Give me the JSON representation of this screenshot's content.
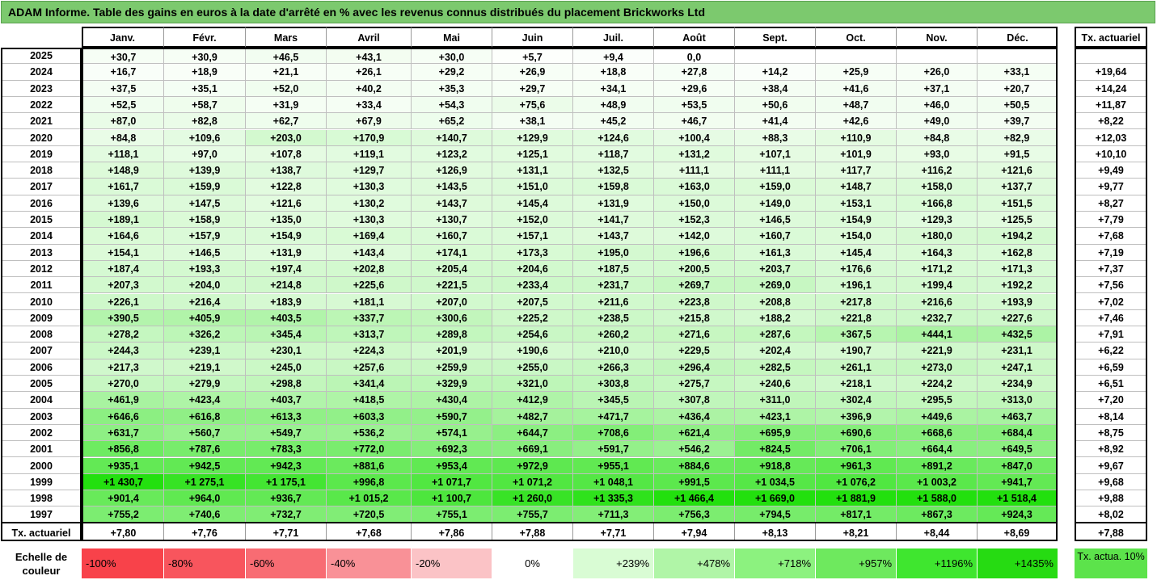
{
  "title": "ADAM Informe. Table des gains en euros à la date d'arrêté en % avec les revenus connus distribués du placement Brickworks Ltd",
  "months": [
    "Janv.",
    "Févr.",
    "Mars",
    "Avril",
    "Mai",
    "Juin",
    "Juil.",
    "Août",
    "Sept.",
    "Oct.",
    "Nov.",
    "Déc."
  ],
  "rate_header": "Tx. actuariel",
  "rows": [
    {
      "year": "2025",
      "values": [
        "+30,7",
        "+30,9",
        "+46,5",
        "+43,1",
        "+30,0",
        "+5,7",
        "+9,4",
        "0,0",
        "",
        "",
        "",
        ""
      ],
      "rate": ""
    },
    {
      "year": "2024",
      "values": [
        "+16,7",
        "+18,9",
        "+21,1",
        "+26,1",
        "+29,2",
        "+26,9",
        "+18,8",
        "+27,8",
        "+14,2",
        "+25,9",
        "+26,0",
        "+33,1"
      ],
      "rate": "+19,64"
    },
    {
      "year": "2023",
      "values": [
        "+37,5",
        "+35,1",
        "+52,0",
        "+40,2",
        "+35,3",
        "+29,7",
        "+34,1",
        "+29,6",
        "+38,4",
        "+41,6",
        "+37,1",
        "+20,7"
      ],
      "rate": "+14,24"
    },
    {
      "year": "2022",
      "values": [
        "+52,5",
        "+58,7",
        "+31,9",
        "+33,4",
        "+54,3",
        "+75,6",
        "+48,9",
        "+53,5",
        "+50,6",
        "+48,7",
        "+46,0",
        "+50,5"
      ],
      "rate": "+11,87"
    },
    {
      "year": "2021",
      "values": [
        "+87,0",
        "+82,8",
        "+62,7",
        "+67,9",
        "+65,2",
        "+38,1",
        "+45,2",
        "+46,7",
        "+41,4",
        "+42,6",
        "+49,0",
        "+39,7"
      ],
      "rate": "+8,22"
    },
    {
      "year": "2020",
      "values": [
        "+84,8",
        "+109,6",
        "+203,0",
        "+170,9",
        "+140,7",
        "+129,9",
        "+124,6",
        "+100,4",
        "+88,3",
        "+110,9",
        "+84,8",
        "+82,9"
      ],
      "rate": "+12,03"
    },
    {
      "year": "2019",
      "values": [
        "+118,1",
        "+97,0",
        "+107,8",
        "+119,1",
        "+123,2",
        "+125,1",
        "+118,7",
        "+131,2",
        "+107,1",
        "+101,9",
        "+93,0",
        "+91,5"
      ],
      "rate": "+10,10"
    },
    {
      "year": "2018",
      "values": [
        "+148,9",
        "+139,9",
        "+138,7",
        "+129,7",
        "+126,9",
        "+131,1",
        "+132,5",
        "+111,1",
        "+111,1",
        "+117,7",
        "+116,2",
        "+121,6"
      ],
      "rate": "+9,49"
    },
    {
      "year": "2017",
      "values": [
        "+161,7",
        "+159,9",
        "+122,8",
        "+130,3",
        "+143,5",
        "+151,0",
        "+159,8",
        "+163,0",
        "+159,0",
        "+148,7",
        "+158,0",
        "+137,7"
      ],
      "rate": "+9,77"
    },
    {
      "year": "2016",
      "values": [
        "+139,6",
        "+147,5",
        "+121,6",
        "+130,2",
        "+143,7",
        "+145,4",
        "+131,9",
        "+150,0",
        "+149,0",
        "+153,1",
        "+166,8",
        "+151,5"
      ],
      "rate": "+8,27"
    },
    {
      "year": "2015",
      "values": [
        "+189,1",
        "+158,9",
        "+135,0",
        "+130,3",
        "+130,7",
        "+152,0",
        "+141,7",
        "+152,3",
        "+146,5",
        "+154,9",
        "+129,3",
        "+125,5"
      ],
      "rate": "+7,79"
    },
    {
      "year": "2014",
      "values": [
        "+164,6",
        "+157,9",
        "+154,9",
        "+169,4",
        "+160,7",
        "+157,1",
        "+143,7",
        "+142,0",
        "+160,7",
        "+154,0",
        "+180,0",
        "+194,2"
      ],
      "rate": "+7,68"
    },
    {
      "year": "2013",
      "values": [
        "+154,1",
        "+146,5",
        "+131,9",
        "+143,4",
        "+174,1",
        "+173,3",
        "+195,0",
        "+196,6",
        "+161,3",
        "+145,4",
        "+164,3",
        "+162,8"
      ],
      "rate": "+7,19"
    },
    {
      "year": "2012",
      "values": [
        "+187,4",
        "+193,3",
        "+197,4",
        "+202,8",
        "+205,4",
        "+204,6",
        "+187,5",
        "+200,5",
        "+203,7",
        "+176,6",
        "+171,2",
        "+171,3"
      ],
      "rate": "+7,37"
    },
    {
      "year": "2011",
      "values": [
        "+207,3",
        "+204,0",
        "+214,8",
        "+225,6",
        "+221,5",
        "+233,4",
        "+231,7",
        "+269,7",
        "+269,0",
        "+196,1",
        "+199,4",
        "+192,2"
      ],
      "rate": "+7,56"
    },
    {
      "year": "2010",
      "values": [
        "+226,1",
        "+216,4",
        "+183,9",
        "+181,1",
        "+207,0",
        "+207,5",
        "+211,6",
        "+223,8",
        "+208,8",
        "+217,8",
        "+216,6",
        "+193,9"
      ],
      "rate": "+7,02"
    },
    {
      "year": "2009",
      "values": [
        "+390,5",
        "+405,9",
        "+403,5",
        "+337,7",
        "+300,6",
        "+225,2",
        "+238,5",
        "+215,8",
        "+188,2",
        "+221,8",
        "+232,7",
        "+227,6"
      ],
      "rate": "+7,46"
    },
    {
      "year": "2008",
      "values": [
        "+278,2",
        "+326,2",
        "+345,4",
        "+313,7",
        "+289,8",
        "+254,6",
        "+260,2",
        "+271,6",
        "+287,6",
        "+367,5",
        "+444,1",
        "+432,5"
      ],
      "rate": "+7,91"
    },
    {
      "year": "2007",
      "values": [
        "+244,3",
        "+239,1",
        "+230,1",
        "+224,3",
        "+201,9",
        "+190,6",
        "+210,0",
        "+229,5",
        "+202,4",
        "+190,7",
        "+221,9",
        "+231,1"
      ],
      "rate": "+6,22"
    },
    {
      "year": "2006",
      "values": [
        "+217,3",
        "+219,1",
        "+245,0",
        "+257,6",
        "+259,9",
        "+255,0",
        "+266,3",
        "+296,4",
        "+282,5",
        "+261,1",
        "+273,0",
        "+247,1"
      ],
      "rate": "+6,59"
    },
    {
      "year": "2005",
      "values": [
        "+270,0",
        "+279,9",
        "+298,8",
        "+341,4",
        "+329,9",
        "+321,0",
        "+303,8",
        "+275,7",
        "+240,6",
        "+218,1",
        "+224,2",
        "+234,9"
      ],
      "rate": "+6,51"
    },
    {
      "year": "2004",
      "values": [
        "+461,9",
        "+423,4",
        "+403,7",
        "+418,5",
        "+430,4",
        "+412,9",
        "+345,5",
        "+307,8",
        "+311,0",
        "+302,4",
        "+295,5",
        "+313,0"
      ],
      "rate": "+7,20"
    },
    {
      "year": "2003",
      "values": [
        "+646,6",
        "+616,8",
        "+613,3",
        "+603,3",
        "+590,7",
        "+482,7",
        "+471,7",
        "+436,4",
        "+423,1",
        "+396,9",
        "+449,6",
        "+463,7"
      ],
      "rate": "+8,14"
    },
    {
      "year": "2002",
      "values": [
        "+631,7",
        "+560,7",
        "+549,7",
        "+536,2",
        "+574,1",
        "+644,7",
        "+708,6",
        "+621,4",
        "+695,9",
        "+690,6",
        "+668,6",
        "+684,4"
      ],
      "rate": "+8,75"
    },
    {
      "year": "2001",
      "values": [
        "+856,8",
        "+787,6",
        "+783,3",
        "+772,0",
        "+692,3",
        "+669,1",
        "+591,7",
        "+546,2",
        "+824,5",
        "+706,1",
        "+664,4",
        "+649,5"
      ],
      "rate": "+8,92"
    },
    {
      "year": "2000",
      "values": [
        "+935,1",
        "+942,5",
        "+942,3",
        "+881,6",
        "+953,4",
        "+972,9",
        "+955,1",
        "+884,6",
        "+918,8",
        "+961,3",
        "+891,2",
        "+847,0"
      ],
      "rate": "+9,67"
    },
    {
      "year": "1999",
      "values": [
        "+1 430,7",
        "+1 275,1",
        "+1 175,1",
        "+996,8",
        "+1 071,7",
        "+1 071,2",
        "+1 048,1",
        "+991,5",
        "+1 034,5",
        "+1 076,2",
        "+1 003,2",
        "+941,7"
      ],
      "rate": "+9,68"
    },
    {
      "year": "1998",
      "values": [
        "+901,4",
        "+964,0",
        "+936,7",
        "+1 015,2",
        "+1 100,7",
        "+1 260,0",
        "+1 335,3",
        "+1 466,4",
        "+1 669,0",
        "+1 881,9",
        "+1 588,0",
        "+1 518,4"
      ],
      "rate": "+9,88"
    },
    {
      "year": "1997",
      "values": [
        "+755,2",
        "+740,6",
        "+732,7",
        "+720,5",
        "+755,1",
        "+755,7",
        "+711,3",
        "+756,3",
        "+794,5",
        "+817,1",
        "+867,3",
        "+924,3"
      ],
      "rate": "+8,02"
    }
  ],
  "footer": {
    "label": "Tx. actuariel",
    "values": [
      "+7,80",
      "+7,76",
      "+7,71",
      "+7,68",
      "+7,86",
      "+7,88",
      "+7,71",
      "+7,94",
      "+8,13",
      "+8,21",
      "+8,44",
      "+8,69"
    ],
    "total": "+7,88"
  },
  "legend": {
    "label": "Echelle de couleur",
    "items": [
      {
        "text": "-100%",
        "color": "#f8424a"
      },
      {
        "text": "-80%",
        "color": "#f8555d"
      },
      {
        "text": "-60%",
        "color": "#f86c73"
      },
      {
        "text": "-40%",
        "color": "#f99197"
      },
      {
        "text": "-20%",
        "color": "#fbc3c6"
      },
      {
        "text": "0%",
        "color": "#ffffff"
      },
      {
        "text": "+239%",
        "color": "#d9fcd4"
      },
      {
        "text": "+478%",
        "color": "#b0f5a7"
      },
      {
        "text": "+718%",
        "color": "#8cf27f"
      },
      {
        "text": "+957%",
        "color": "#6ee95e"
      },
      {
        "text": "+1196%",
        "color": "#3fe62f"
      },
      {
        "text": "+1435%",
        "color": "#26db12"
      }
    ],
    "rate10": "Tx. actua. 10%",
    "rate10_color": "#5ce34b"
  },
  "colors": {
    "title_bg": "#7cc96e",
    "scale_max_value": 1435,
    "scale_zero": "#ffffff",
    "scale_full": "#22e00e"
  }
}
